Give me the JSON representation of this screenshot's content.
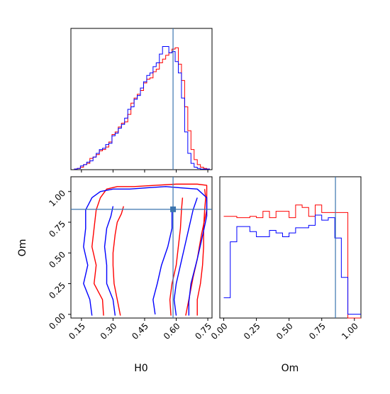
{
  "chart_data": {
    "type": "corner",
    "parameters": [
      "H0",
      "Om"
    ],
    "truth": {
      "H0": 0.585,
      "Om": 0.855
    },
    "series_colors": {
      "red": "#ff0000",
      "blue": "#0000ff"
    },
    "truth_color": "#3b75af",
    "panels": [
      {
        "name": "H0-marginal",
        "type": "step-histogram",
        "xlim": [
          0.1,
          0.77
        ],
        "x_edges": [
          0.115,
          0.13,
          0.145,
          0.16,
          0.175,
          0.19,
          0.205,
          0.22,
          0.235,
          0.25,
          0.265,
          0.28,
          0.295,
          0.31,
          0.325,
          0.34,
          0.355,
          0.37,
          0.385,
          0.4,
          0.415,
          0.43,
          0.445,
          0.46,
          0.475,
          0.49,
          0.505,
          0.52,
          0.535,
          0.55,
          0.565,
          0.58,
          0.595,
          0.61,
          0.625,
          0.64,
          0.655,
          0.67,
          0.685,
          0.7,
          0.715,
          0.73,
          0.745,
          0.76
        ],
        "series": [
          {
            "color": "red",
            "values": [
              0.005,
              0.01,
              0.02,
              0.04,
              0.05,
              0.09,
              0.1,
              0.12,
              0.15,
              0.16,
              0.18,
              0.22,
              0.28,
              0.3,
              0.34,
              0.37,
              0.38,
              0.44,
              0.53,
              0.57,
              0.6,
              0.63,
              0.69,
              0.72,
              0.73,
              0.78,
              0.8,
              0.85,
              0.88,
              0.91,
              0.93,
              0.96,
              0.97,
              0.84,
              0.71,
              0.5,
              0.31,
              0.16,
              0.08,
              0.04,
              0.02,
              0.01,
              0.005
            ]
          },
          {
            "color": "blue",
            "values": [
              0.005,
              0.01,
              0.03,
              0.04,
              0.06,
              0.07,
              0.1,
              0.13,
              0.16,
              0.17,
              0.2,
              0.21,
              0.27,
              0.29,
              0.33,
              0.36,
              0.41,
              0.48,
              0.5,
              0.56,
              0.59,
              0.65,
              0.7,
              0.75,
              0.77,
              0.82,
              0.85,
              0.92,
              0.98,
              0.98,
              0.93,
              0.94,
              0.86,
              0.77,
              0.57,
              0.3,
              0.13,
              0.05,
              0.02,
              0.01,
              0.005,
              0.005,
              0.005
            ]
          }
        ]
      },
      {
        "name": "Om-marginal",
        "type": "step-histogram",
        "xlim": [
          -0.03,
          1.05
        ],
        "xticks": [
          "0.00",
          "0.25",
          "0.50",
          "0.75",
          "1.00"
        ],
        "xtick_values": [
          0,
          0.25,
          0.5,
          0.75,
          1.0
        ],
        "xlabel": "Om",
        "x_edges": [
          0.0,
          0.05,
          0.1,
          0.15,
          0.2,
          0.25,
          0.3,
          0.35,
          0.4,
          0.45,
          0.5,
          0.55,
          0.6,
          0.65,
          0.7,
          0.75,
          0.8,
          0.85,
          0.9,
          0.95,
          1.0,
          1.05
        ],
        "series": [
          {
            "color": "red",
            "values": [
              0.8,
              0.8,
              0.79,
              0.79,
              0.8,
              0.79,
              0.84,
              0.79,
              0.84,
              0.84,
              0.79,
              0.89,
              0.87,
              0.8,
              0.89,
              0.83,
              0.83,
              0.83,
              0.83,
              0.0,
              0.0
            ]
          },
          {
            "color": "blue",
            "values": [
              0.16,
              0.6,
              0.72,
              0.72,
              0.68,
              0.64,
              0.64,
              0.69,
              0.67,
              0.64,
              0.67,
              0.71,
              0.71,
              0.73,
              0.81,
              0.77,
              0.79,
              0.63,
              0.32,
              0.03,
              0.03
            ]
          }
        ]
      },
      {
        "name": "H0-Om-contour",
        "type": "contour",
        "xlim": [
          0.1,
          0.77
        ],
        "ylim": [
          -0.03,
          1.12
        ],
        "xticks": [
          "0.15",
          "0.30",
          "0.45",
          "0.60",
          "0.75"
        ],
        "xtick_values": [
          0.15,
          0.3,
          0.45,
          0.6,
          0.75
        ],
        "yticks": [
          "0.00",
          "0.25",
          "0.50",
          "0.75",
          "1.00"
        ],
        "ytick_values": [
          0,
          0.25,
          0.5,
          0.75,
          1.0
        ],
        "xlabel": "H0",
        "ylabel": "Om",
        "contours": [
          {
            "color": "red",
            "level": "outer",
            "points": [
              [
                0.255,
                -0.01
              ],
              [
                0.25,
                0.12
              ],
              [
                0.21,
                0.25
              ],
              [
                0.22,
                0.4
              ],
              [
                0.2,
                0.55
              ],
              [
                0.21,
                0.7
              ],
              [
                0.22,
                0.85
              ],
              [
                0.24,
                0.95
              ],
              [
                0.27,
                1.02
              ],
              [
                0.32,
                1.04
              ],
              [
                0.4,
                1.04
              ],
              [
                0.5,
                1.05
              ],
              [
                0.6,
                1.06
              ],
              [
                0.7,
                1.06
              ],
              [
                0.745,
                1.05
              ],
              [
                0.745,
                0.85
              ],
              [
                0.72,
                0.65
              ],
              [
                0.7,
                0.45
              ],
              [
                0.68,
                0.3
              ],
              [
                0.66,
                0.12
              ],
              [
                0.645,
                -0.01
              ]
            ]
          },
          {
            "color": "red",
            "level": "inner",
            "points": [
              [
                0.335,
                -0.01
              ],
              [
                0.32,
                0.12
              ],
              [
                0.305,
                0.25
              ],
              [
                0.3,
                0.4
              ],
              [
                0.3,
                0.5
              ],
              [
                0.31,
                0.65
              ],
              [
                0.32,
                0.75
              ],
              [
                0.34,
                0.82
              ],
              [
                0.35,
                0.88
              ]
            ]
          },
          {
            "color": "red",
            "level": "inner",
            "points": [
              [
                0.7,
                -0.01
              ],
              [
                0.7,
                0.12
              ],
              [
                0.715,
                0.25
              ],
              [
                0.725,
                0.4
              ],
              [
                0.73,
                0.55
              ],
              [
                0.73,
                0.7
              ],
              [
                0.735,
                0.85
              ],
              [
                0.74,
                0.95
              ],
              [
                0.735,
                1.02
              ]
            ]
          },
          {
            "color": "red",
            "level": "inner",
            "points": [
              [
                0.575,
                -0.01
              ],
              [
                0.57,
                0.12
              ],
              [
                0.58,
                0.25
              ],
              [
                0.6,
                0.4
              ],
              [
                0.61,
                0.55
              ],
              [
                0.62,
                0.7
              ],
              [
                0.625,
                0.85
              ],
              [
                0.63,
                0.95
              ]
            ]
          },
          {
            "color": "blue",
            "level": "outer",
            "points": [
              [
                0.2,
                -0.01
              ],
              [
                0.19,
                0.12
              ],
              [
                0.16,
                0.25
              ],
              [
                0.18,
                0.4
              ],
              [
                0.16,
                0.55
              ],
              [
                0.17,
                0.7
              ],
              [
                0.17,
                0.85
              ],
              [
                0.2,
                0.95
              ],
              [
                0.24,
                1.0
              ],
              [
                0.3,
                1.02
              ],
              [
                0.38,
                1.02
              ],
              [
                0.46,
                1.03
              ],
              [
                0.55,
                1.04
              ],
              [
                0.62,
                1.03
              ],
              [
                0.7,
                1.02
              ],
              [
                0.745,
                0.95
              ],
              [
                0.745,
                0.8
              ],
              [
                0.72,
                0.6
              ],
              [
                0.7,
                0.45
              ],
              [
                0.67,
                0.25
              ],
              [
                0.66,
                0.1
              ],
              [
                0.66,
                -0.01
              ]
            ]
          },
          {
            "color": "blue",
            "level": "inner",
            "points": [
              [
                0.31,
                -0.01
              ],
              [
                0.3,
                0.12
              ],
              [
                0.27,
                0.25
              ],
              [
                0.27,
                0.4
              ],
              [
                0.26,
                0.55
              ],
              [
                0.27,
                0.7
              ],
              [
                0.29,
                0.8
              ],
              [
                0.3,
                0.88
              ]
            ]
          },
          {
            "color": "blue",
            "level": "inner",
            "points": [
              [
                0.6,
                -0.01
              ],
              [
                0.59,
                0.12
              ],
              [
                0.6,
                0.25
              ],
              [
                0.62,
                0.4
              ],
              [
                0.64,
                0.55
              ],
              [
                0.66,
                0.7
              ],
              [
                0.68,
                0.85
              ],
              [
                0.7,
                0.95
              ]
            ]
          },
          {
            "color": "blue",
            "level": "inner",
            "points": [
              [
                0.5,
                0.0
              ],
              [
                0.49,
                0.12
              ],
              [
                0.51,
                0.25
              ],
              [
                0.53,
                0.4
              ],
              [
                0.56,
                0.55
              ],
              [
                0.58,
                0.7
              ],
              [
                0.58,
                0.85
              ]
            ]
          }
        ],
        "truth_marker": {
          "H0": 0.585,
          "Om": 0.855
        }
      }
    ]
  }
}
